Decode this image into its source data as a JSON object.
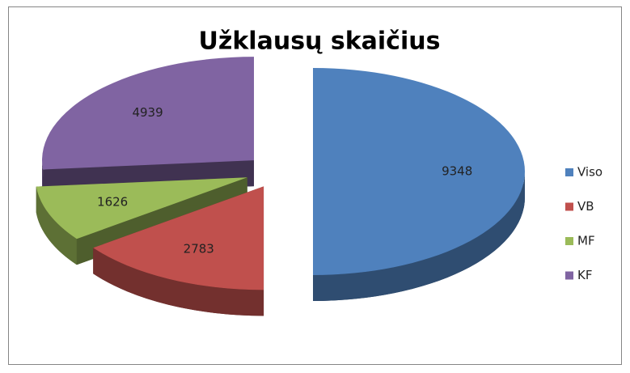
{
  "chart_data": {
    "type": "pie",
    "title": "Užklausų skaičius",
    "categories": [
      "Viso",
      "VB",
      "MF",
      "KF"
    ],
    "values": [
      9348,
      2783,
      1626,
      4939
    ],
    "colors": [
      "#4f81bd",
      "#c0504d",
      "#9bbb59",
      "#8064a2"
    ],
    "legend": "right"
  }
}
